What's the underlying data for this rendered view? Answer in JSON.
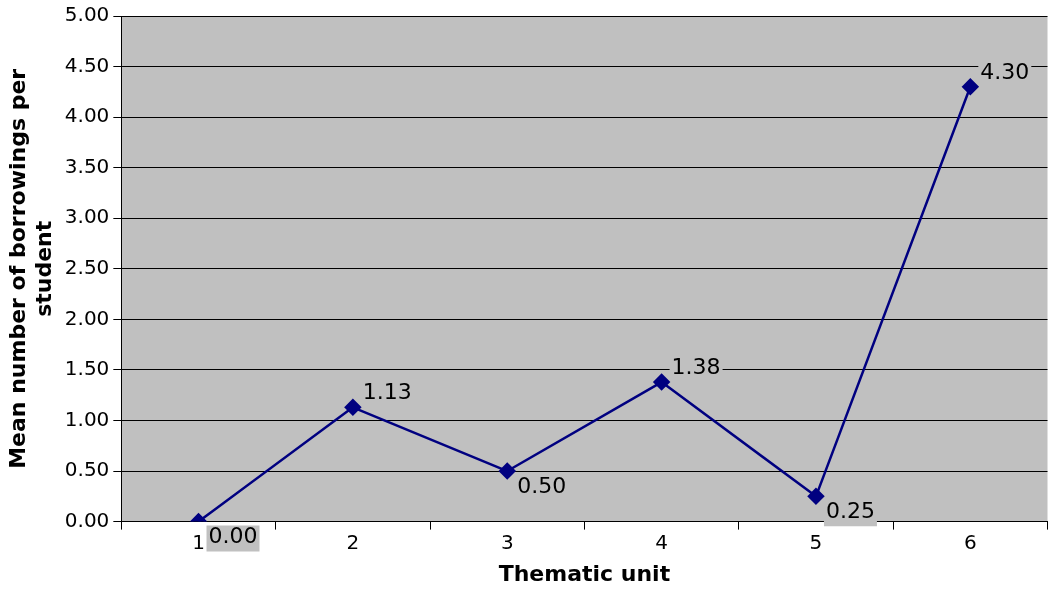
{
  "chart_data": {
    "type": "line",
    "xlabel": "Thematic unit",
    "ylabel": "Mean number of borrowings per student",
    "categories": [
      "1",
      "2",
      "3",
      "4",
      "5",
      "6"
    ],
    "series": [
      {
        "color": "#000080",
        "values": [
          0,
          1.13,
          0.5,
          1.38,
          0.25,
          4.3
        ],
        "value_labels": [
          "0.00",
          "1.13",
          "0.50",
          "1.38",
          "0.25",
          "4.30"
        ]
      }
    ],
    "ylim": [
      0,
      5
    ],
    "yticks": [
      {
        "value": 0,
        "label": "0.00"
      },
      {
        "value": 0.5,
        "label": "0.50"
      },
      {
        "value": 1,
        "label": "1.00"
      },
      {
        "value": 1.5,
        "label": "1.50"
      },
      {
        "value": 2,
        "label": "2.00"
      },
      {
        "value": 2.5,
        "label": "2.50"
      },
      {
        "value": 3,
        "label": "3.00"
      },
      {
        "value": 3.5,
        "label": "3.50"
      },
      {
        "value": 4,
        "label": "4.00"
      },
      {
        "value": 4.5,
        "label": "4.50"
      },
      {
        "value": 5,
        "label": "5.00"
      }
    ],
    "grid": "y",
    "legend": false,
    "marker": "diamond",
    "line_style": "solid"
  }
}
